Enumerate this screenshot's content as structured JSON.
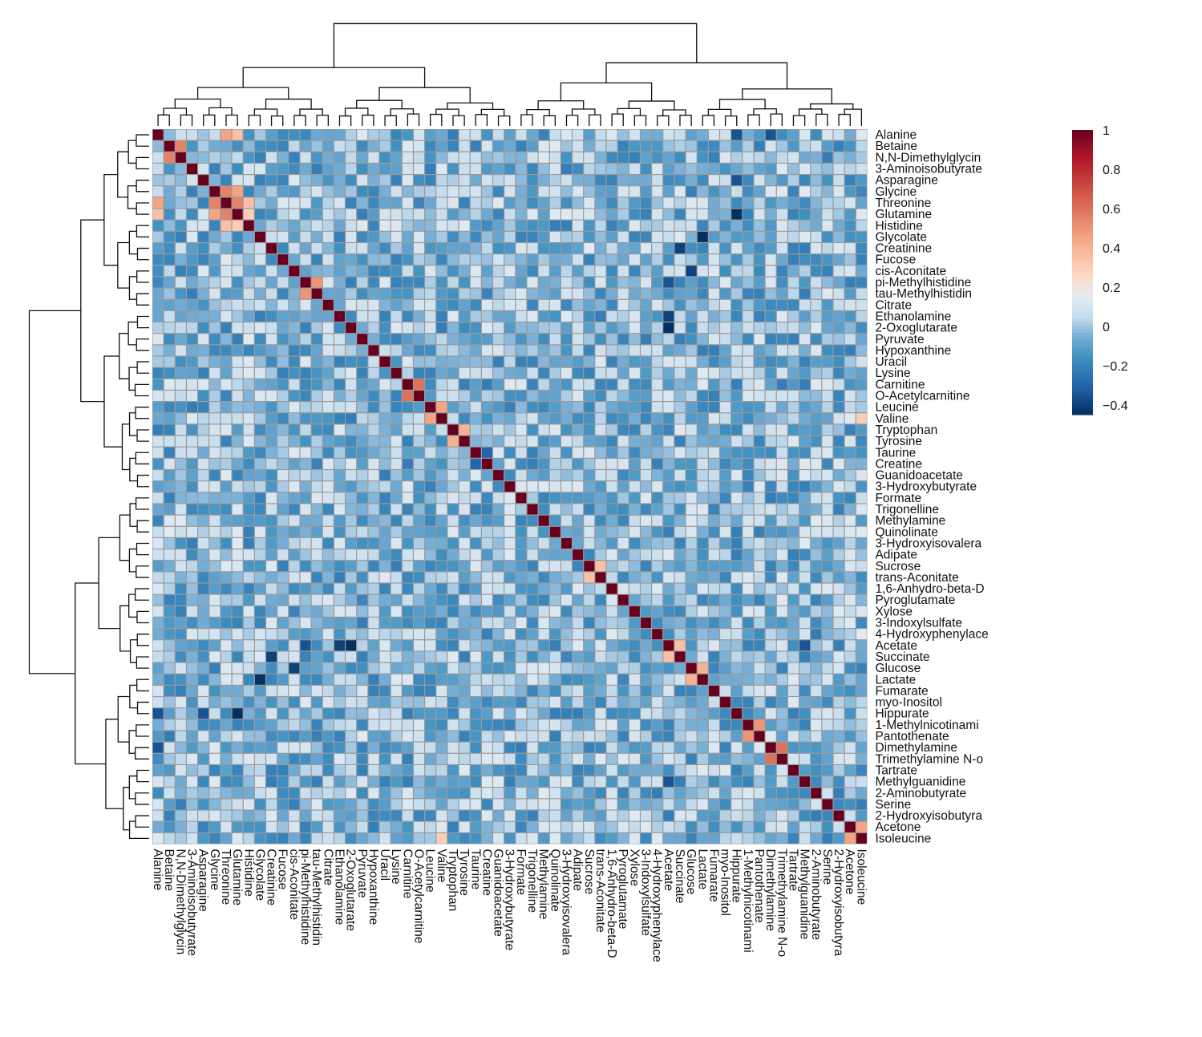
{
  "chart_data": {
    "type": "heatmap",
    "title": "",
    "xlabel": "",
    "ylabel": "",
    "value_range": [
      -0.45,
      1.0
    ],
    "labels": [
      "Alanine",
      "Betaine",
      "N,N-Dimethylglycin",
      "3-Aminoisobutyrate",
      "Asparagine",
      "Glycine",
      "Threonine",
      "Glutamine",
      "Histidine",
      "Glycolate",
      "Creatinine",
      "Fucose",
      "cis-Aconitate",
      "pi-Methylhistidine",
      "tau-Methylhistidin",
      "Citrate",
      "Ethanolamine",
      "2-Oxoglutarate",
      "Pyruvate",
      "Hypoxanthine",
      "Uracil",
      "Lysine",
      "Carnitine",
      "O-Acetylcarnitine",
      "Leucine",
      "Valine",
      "Tryptophan",
      "Tyrosine",
      "Taurine",
      "Creatine",
      "Guanidoacetate",
      "3-Hydroxybutyrate",
      "Formate",
      "Trigonelline",
      "Methylamine",
      "Quinolinate",
      "3-Hydroxyisovalera",
      "Adipate",
      "Sucrose",
      "trans-Aconitate",
      "1,6-Anhydro-beta-D",
      "Pyroglutamate",
      "Xylose",
      "3-Indoxylsulfate",
      "4-Hydroxyphenylace",
      "Acetate",
      "Succinate",
      "Glucose",
      "Lactate",
      "Fumarate",
      "myo-Inositol",
      "Hippurate",
      "1-Methylnicotinami",
      "Pantothenate",
      "Dimethylamine",
      "Trimethylamine N-o",
      "Tartrate",
      "Methylguanidine",
      "2-Aminobutyrate",
      "Serine",
      "2-Hydroxyisobutyra",
      "Acetone",
      "Isoleucine"
    ],
    "highlighted_pairs": [
      {
        "a": "Alanine",
        "b": "Threonine",
        "value": 0.45
      },
      {
        "a": "Alanine",
        "b": "Glutamine",
        "value": 0.35
      },
      {
        "a": "Betaine",
        "b": "N,N-Dimethylglycin",
        "value": 0.55
      },
      {
        "a": "Glycine",
        "b": "Threonine",
        "value": 0.55
      },
      {
        "a": "Glycine",
        "b": "Glutamine",
        "value": 0.45
      },
      {
        "a": "Threonine",
        "b": "Glutamine",
        "value": 0.55
      },
      {
        "a": "Threonine",
        "b": "Histidine",
        "value": 0.35
      },
      {
        "a": "Glutamine",
        "b": "Histidine",
        "value": 0.3
      },
      {
        "a": "pi-Methylhistidine",
        "b": "tau-Methylhistidin",
        "value": 0.5
      },
      {
        "a": "Carnitine",
        "b": "O-Acetylcarnitine",
        "value": 0.6
      },
      {
        "a": "Leucine",
        "b": "Valine",
        "value": 0.45
      },
      {
        "a": "Valine",
        "b": "Isoleucine",
        "value": 0.3
      },
      {
        "a": "Tryptophan",
        "b": "Tyrosine",
        "value": 0.4
      },
      {
        "a": "Sucrose",
        "b": "trans-Aconitate",
        "value": 0.35
      },
      {
        "a": "Acetate",
        "b": "Succinate",
        "value": 0.35
      },
      {
        "a": "Glucose",
        "b": "Lactate",
        "value": 0.4
      },
      {
        "a": "1-Methylnicotinami",
        "b": "Pantothenate",
        "value": 0.5
      },
      {
        "a": "Dimethylamine",
        "b": "Trimethylamine N-o",
        "value": 0.6
      },
      {
        "a": "Acetone",
        "b": "Isoleucine",
        "value": 0.45
      },
      {
        "a": "Alanine",
        "b": "Hippurate",
        "value": -0.35
      },
      {
        "a": "Glutamine",
        "b": "Hippurate",
        "value": -0.45
      },
      {
        "a": "Asparagine",
        "b": "Hippurate",
        "value": -0.35
      },
      {
        "a": "Glycolate",
        "b": "Lactate",
        "value": -0.45
      },
      {
        "a": "cis-Aconitate",
        "b": "Glucose",
        "value": -0.4
      },
      {
        "a": "pi-Methylhistidine",
        "b": "Acetate",
        "value": -0.35
      },
      {
        "a": "2-Oxoglutarate",
        "b": "Acetate",
        "value": -0.45
      },
      {
        "a": "Ethanolamine",
        "b": "Acetate",
        "value": -0.4
      },
      {
        "a": "Acetate",
        "b": "Methylguanidine",
        "value": -0.35
      },
      {
        "a": "Alanine",
        "b": "Dimethylamine",
        "value": -0.35
      },
      {
        "a": "Creatine",
        "b": "Taurine",
        "value": -0.3
      },
      {
        "a": "Succinate",
        "b": "Creatinine",
        "value": -0.4
      }
    ],
    "colorbar": {
      "ticks": [
        "1",
        "0.8",
        "0.6",
        "0.4",
        "0.2",
        "0",
        "−0.2",
        "−0.4"
      ],
      "tick_values": [
        1,
        0.8,
        0.6,
        0.4,
        0.2,
        0,
        -0.2,
        -0.4
      ],
      "colors": {
        "max": "#67001f",
        "high": "#d6604d",
        "mid_high": "#fddbc7",
        "mid": "#e4eef6",
        "low": "#6baed6",
        "min": "#053061"
      }
    },
    "dendrogram": "hierarchical clustering on rows and columns (same order)",
    "grid": true,
    "cell_border_color": "#9a9a9a"
  }
}
